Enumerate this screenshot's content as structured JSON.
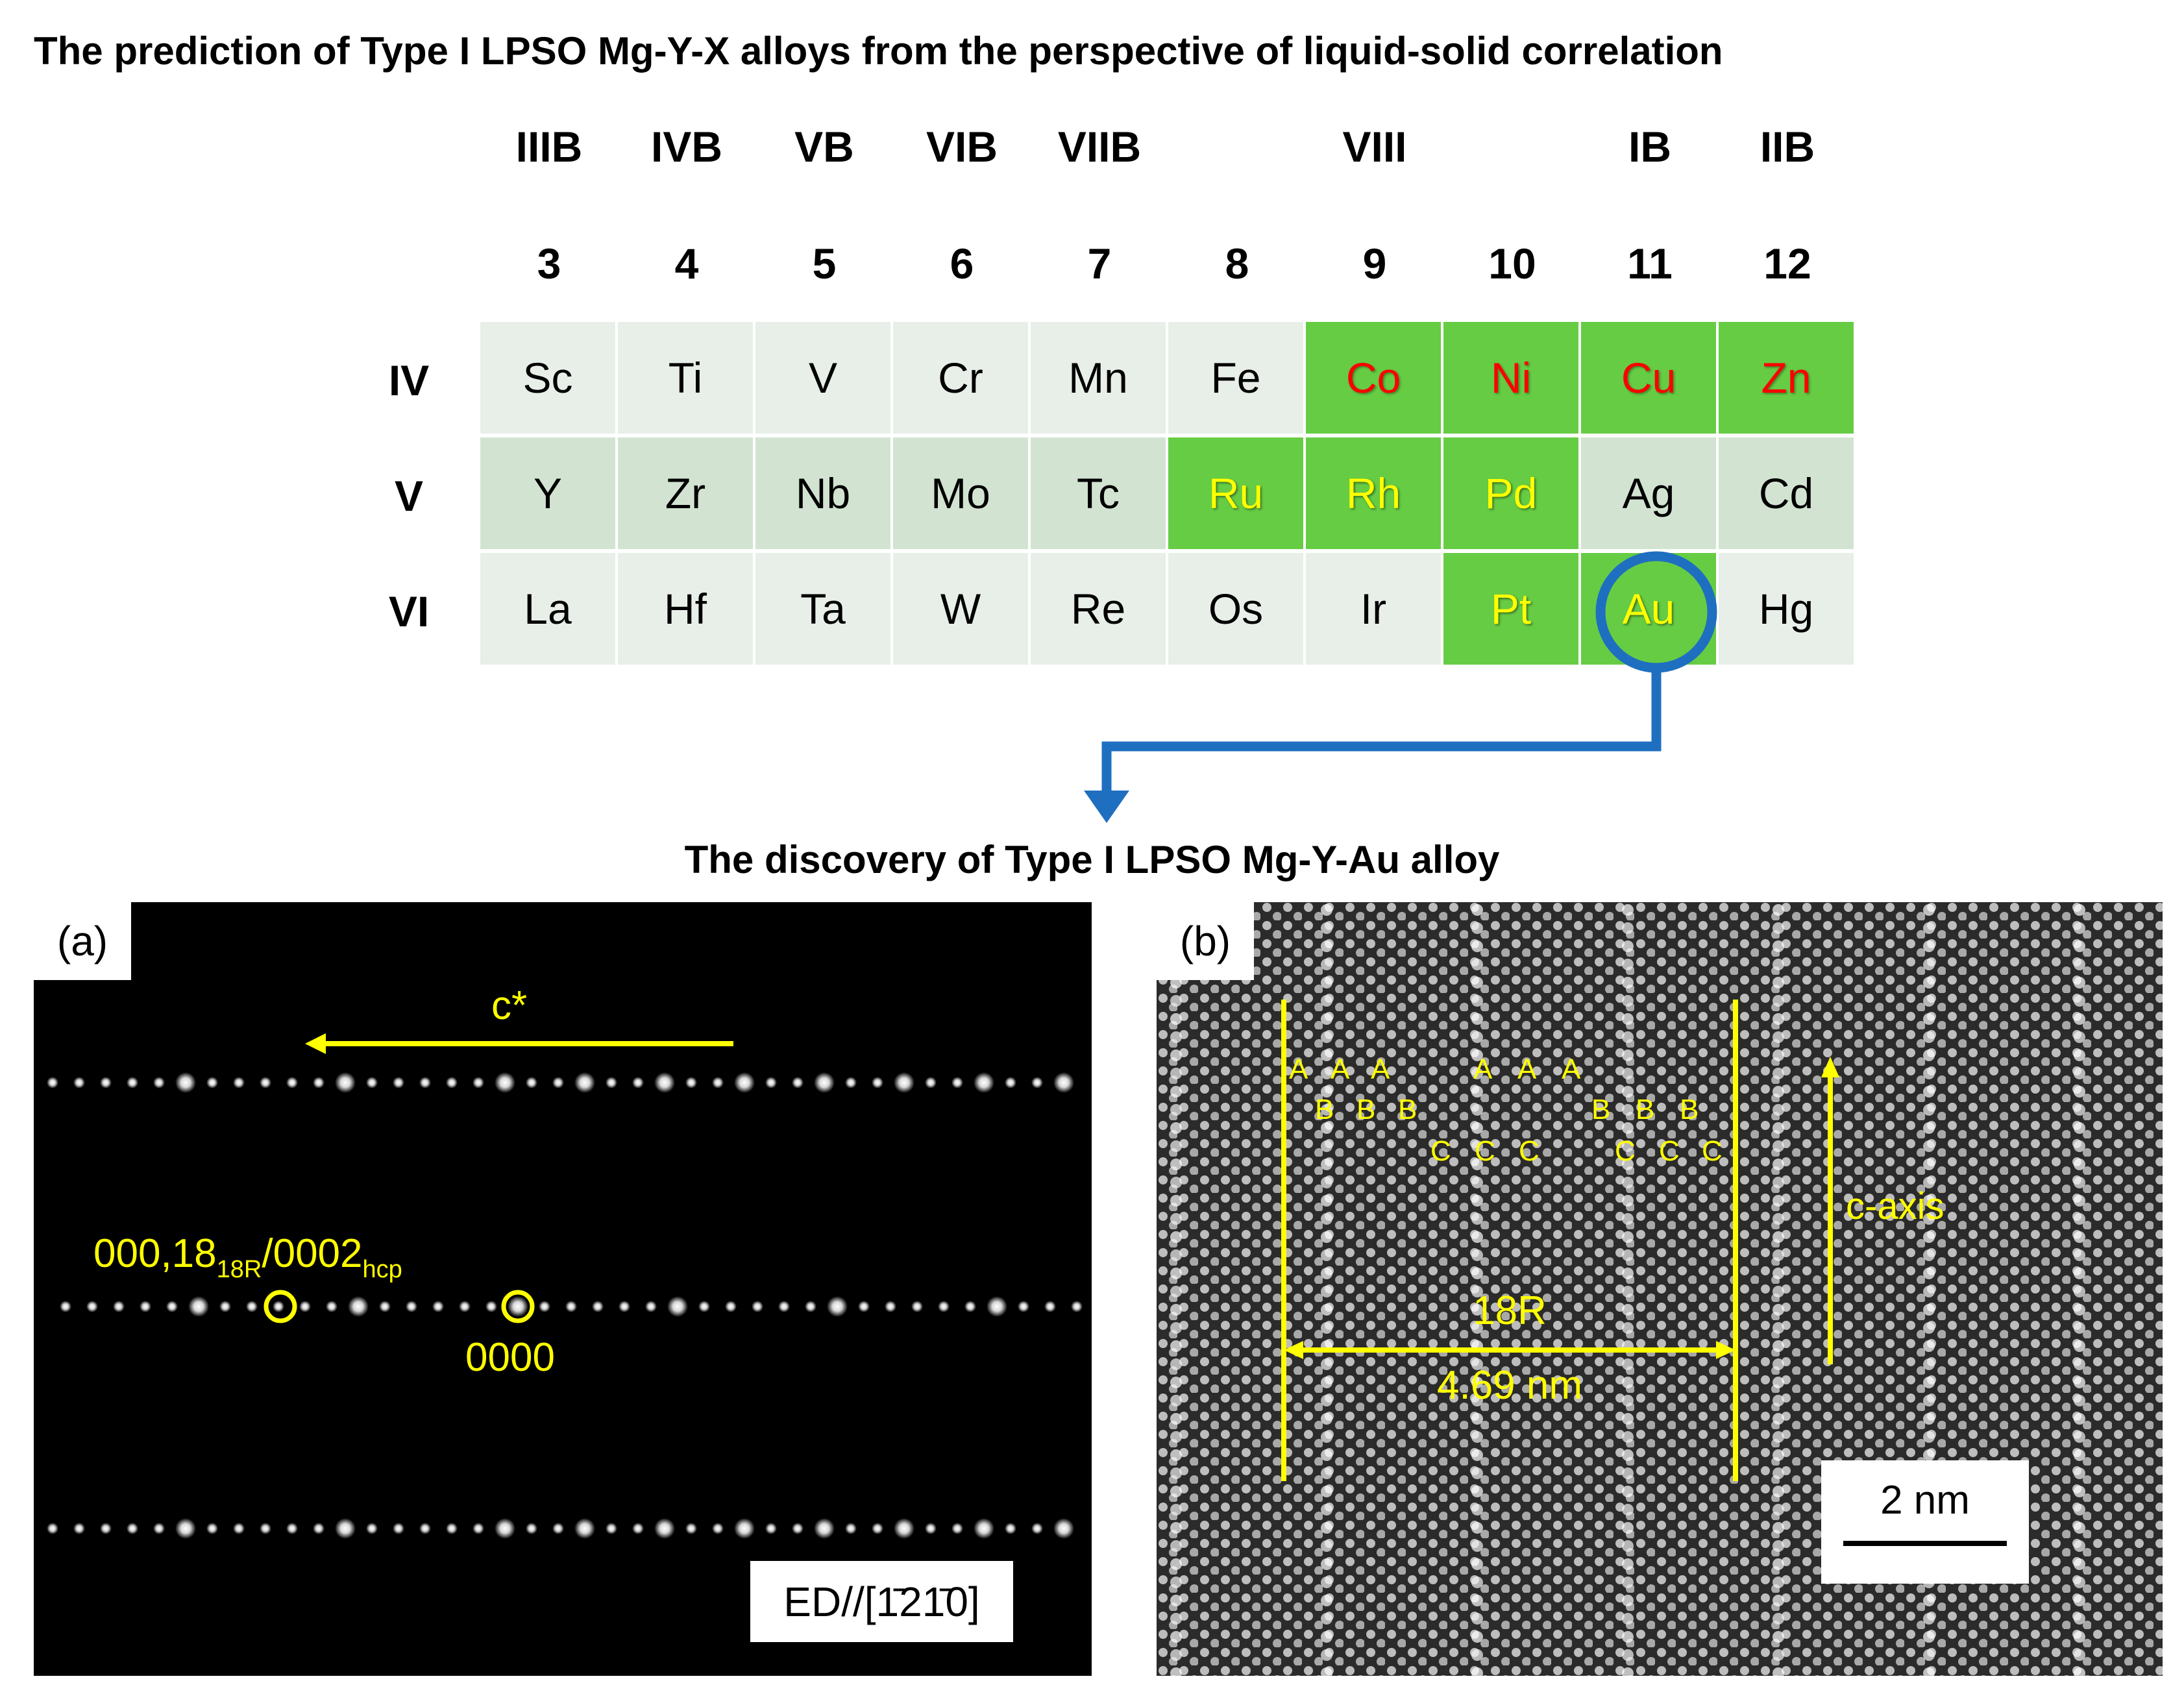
{
  "title": "The prediction of Type I LPSO Mg-Y-X alloys from the perspective of liquid-solid correlation",
  "colors": {
    "cell_light": "#e8efe8",
    "cell_mid": "#d2e3d2",
    "cell_highlight": "#66cc44",
    "text_red": "#ff0000",
    "text_yellow": "#ffff00",
    "arrow_blue": "#1f6fc0"
  },
  "groups_roman": [
    "IIIB",
    "IVB",
    "VB",
    "VIB",
    "VIIB",
    "",
    "VIII",
    "",
    "IB",
    "IIB"
  ],
  "groups_number": [
    "3",
    "4",
    "5",
    "6",
    "7",
    "8",
    "9",
    "10",
    "11",
    "12"
  ],
  "periods": [
    "IV",
    "V",
    "VI"
  ],
  "table": [
    [
      {
        "s": "Sc",
        "h": false,
        "c": "normal"
      },
      {
        "s": "Ti",
        "h": false,
        "c": "normal"
      },
      {
        "s": "V",
        "h": false,
        "c": "normal"
      },
      {
        "s": "Cr",
        "h": false,
        "c": "normal"
      },
      {
        "s": "Mn",
        "h": false,
        "c": "normal"
      },
      {
        "s": "Fe",
        "h": false,
        "c": "normal"
      },
      {
        "s": "Co",
        "h": true,
        "c": "red"
      },
      {
        "s": "Ni",
        "h": true,
        "c": "red"
      },
      {
        "s": "Cu",
        "h": true,
        "c": "red"
      },
      {
        "s": "Zn",
        "h": true,
        "c": "red"
      }
    ],
    [
      {
        "s": "Y",
        "h": false,
        "c": "normal"
      },
      {
        "s": "Zr",
        "h": false,
        "c": "normal"
      },
      {
        "s": "Nb",
        "h": false,
        "c": "normal"
      },
      {
        "s": "Mo",
        "h": false,
        "c": "normal"
      },
      {
        "s": "Tc",
        "h": false,
        "c": "normal"
      },
      {
        "s": "Ru",
        "h": true,
        "c": "yellow"
      },
      {
        "s": "Rh",
        "h": true,
        "c": "yellow"
      },
      {
        "s": "Pd",
        "h": true,
        "c": "yellow"
      },
      {
        "s": "Ag",
        "h": false,
        "c": "normal"
      },
      {
        "s": "Cd",
        "h": false,
        "c": "normal"
      }
    ],
    [
      {
        "s": "La",
        "h": false,
        "c": "normal"
      },
      {
        "s": "Hf",
        "h": false,
        "c": "normal"
      },
      {
        "s": "Ta",
        "h": false,
        "c": "normal"
      },
      {
        "s": "W",
        "h": false,
        "c": "normal"
      },
      {
        "s": "Re",
        "h": false,
        "c": "normal"
      },
      {
        "s": "Os",
        "h": false,
        "c": "normal"
      },
      {
        "s": "Ir",
        "h": false,
        "c": "normal"
      },
      {
        "s": "Pt",
        "h": true,
        "c": "yellow"
      },
      {
        "s": "Au",
        "h": true,
        "c": "yellow"
      },
      {
        "s": "Hg",
        "h": false,
        "c": "normal"
      }
    ]
  ],
  "discovery_title": "The discovery of Type I LPSO Mg-Y-Au alloy",
  "panel_a": {
    "label": "(a)",
    "arrow_label": "c*",
    "spot_label_main": "000,18",
    "spot_label_sub1": "18R",
    "spot_label_mid": "/0002",
    "spot_label_sub2": "hcp",
    "origin_label": "0000",
    "zone_label_prefix": "ED//[",
    "zone_label_index": "1̄21̄0",
    "zone_label_suffix": "]"
  },
  "panel_b": {
    "label": "(b)",
    "stacking_a": "A",
    "stacking_b": "B",
    "stacking_c": "C",
    "period_label": "18R",
    "period_value": "4.69 nm",
    "axis_label": "c-axis",
    "scale_label": "2 nm"
  }
}
